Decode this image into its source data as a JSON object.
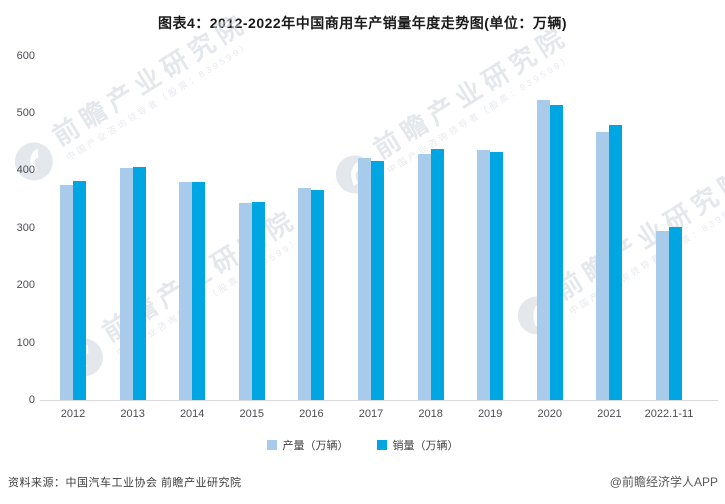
{
  "source_note": "资料来源：中国汽车工业协会 前瞻产业研究院",
  "credit": "@前瞻经济学人APP",
  "watermark": {
    "main": "前瞻产业研究院",
    "sub": "中国产业咨询领导者（股票：839599）"
  },
  "chart_data": {
    "type": "bar",
    "title": "图表4：2012-2022年中国商用车产销量年度走势图(单位：万辆)",
    "categories": [
      "2012",
      "2013",
      "2014",
      "2015",
      "2016",
      "2017",
      "2018",
      "2019",
      "2020",
      "2021",
      "2022.1-11"
    ],
    "series": [
      {
        "name": "产量（万辆）",
        "color": "#a9cbeb",
        "values": [
          374.8,
          403.2,
          380.3,
          342.4,
          369.8,
          420.9,
          428.0,
          436.0,
          523.1,
          467.4,
          294.7
        ]
      },
      {
        "name": "销量（万辆）",
        "color": "#00a6e1",
        "values": [
          381.1,
          405.5,
          379.1,
          345.1,
          365.1,
          416.1,
          437.1,
          432.4,
          513.3,
          479.3,
          301.9
        ]
      }
    ],
    "xlabel": "",
    "ylabel": "",
    "ylim": [
      0,
      600
    ],
    "yticks": [
      0,
      100,
      200,
      300,
      400,
      500,
      600
    ],
    "grid": false,
    "legend_position": "bottom"
  }
}
